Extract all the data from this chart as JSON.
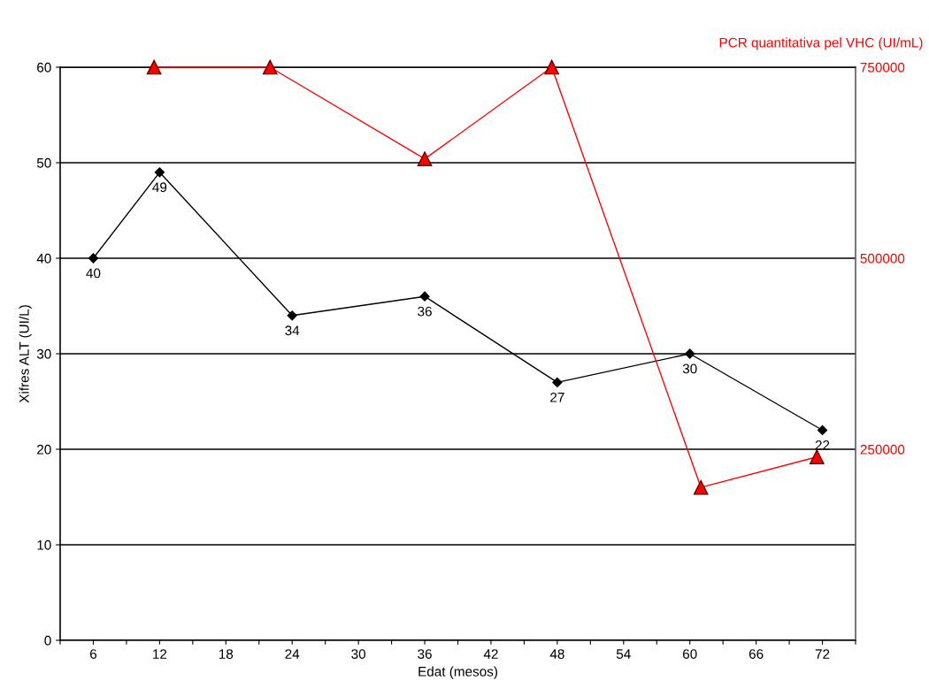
{
  "chart_data": {
    "type": "line",
    "xlabel": "Edat (mesos)",
    "ylabel": "Xifres ALT (UI/L)",
    "y2label": "PCR quantitativa pel VHC (UI/mL)",
    "xlim": [
      3,
      75
    ],
    "xticks": [
      {
        "value": 3,
        "label": null
      },
      6,
      {
        "value": 9,
        "label": null
      },
      12,
      {
        "value": 15,
        "label": null
      },
      18,
      {
        "value": 21,
        "label": null
      },
      24,
      {
        "value": 27,
        "label": null
      },
      30,
      {
        "value": 33,
        "label": null
      },
      36,
      {
        "value": 39,
        "label": null
      },
      42,
      {
        "value": 45,
        "label": null
      },
      48,
      {
        "value": 51,
        "label": null
      },
      54,
      {
        "value": 57,
        "label": null
      },
      60,
      {
        "value": 63,
        "label": null
      },
      66,
      {
        "value": 69,
        "label": null
      },
      72,
      {
        "value": 75,
        "label": null
      }
    ],
    "ylim": [
      0,
      60
    ],
    "yticks": [
      0,
      10,
      20,
      30,
      40,
      50,
      60
    ],
    "y2lim": [
      0,
      750000
    ],
    "y2ticks": [
      250000,
      500000,
      750000
    ],
    "grid": "y",
    "legend": false,
    "series": [
      {
        "x": [
          6,
          12,
          24,
          36,
          48,
          60,
          72
        ],
        "values": [
          40,
          49,
          34,
          36,
          27,
          30,
          22
        ],
        "color": "#000000",
        "marker": "diamond",
        "data_labels": true
      },
      {
        "x": [
          11.5,
          22,
          36,
          47.5,
          61,
          71.5
        ],
        "values": [
          750000,
          750000,
          630000,
          750000,
          200000,
          240000
        ],
        "color": "#ff0000",
        "marker": "triangle",
        "axis": "y2"
      }
    ]
  }
}
